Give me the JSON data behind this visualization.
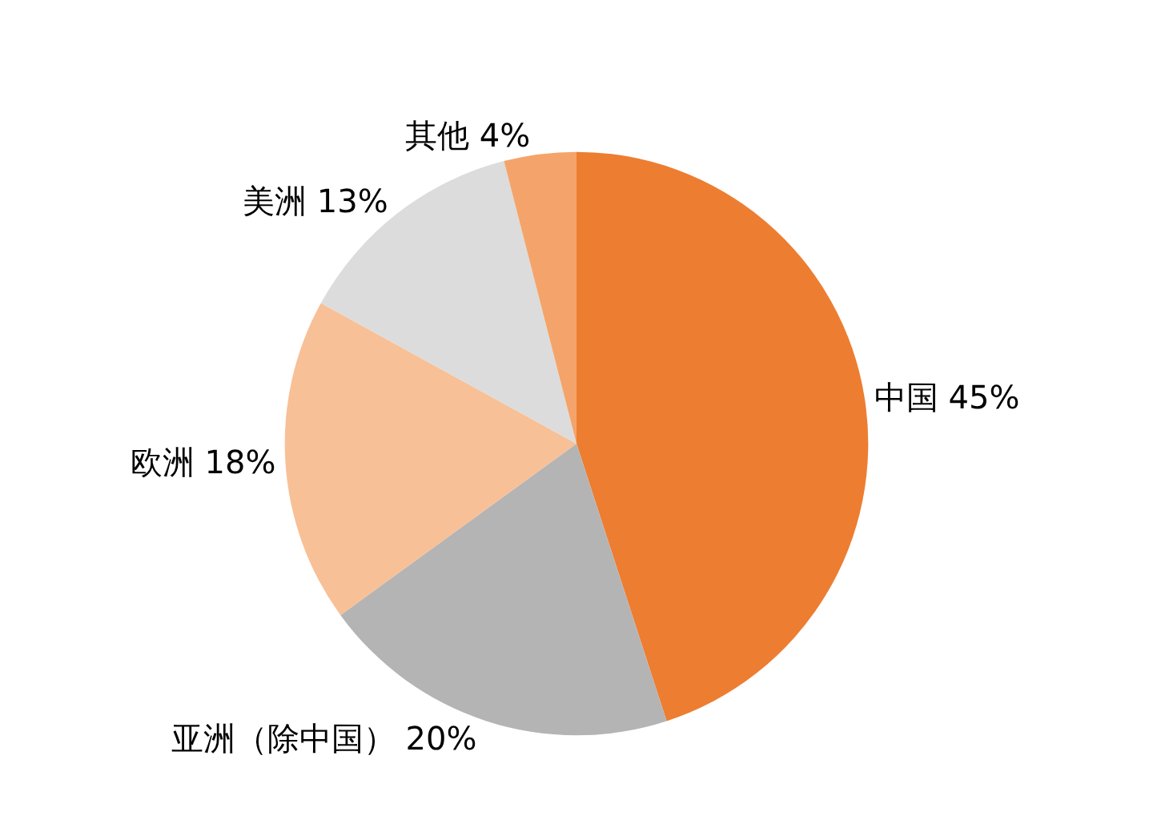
{
  "chart_data": {
    "type": "pie",
    "categories": [
      "中国",
      "亚洲（除中国）",
      "欧洲",
      "美洲",
      "其他"
    ],
    "values": [
      45,
      20,
      18,
      13,
      4
    ],
    "value_labels": [
      "45%",
      "20%",
      "18%",
      "13%",
      "4%"
    ],
    "colors": [
      "#ed7d31",
      "#b4b4b4",
      "#f8c096",
      "#dcdcdc",
      "#f4a46a"
    ],
    "legend": false
  }
}
